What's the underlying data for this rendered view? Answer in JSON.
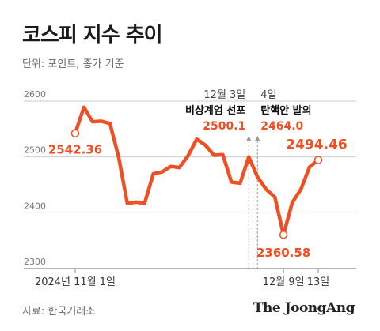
{
  "title": "코스피 지수 추이",
  "unit_label": "단위: 포인트, 종가 기준",
  "source": "자료: 한국거래소",
  "brand": "The JoongAng",
  "colors": {
    "line": "#f04e23",
    "grid": "#cccccc",
    "text": "#333333",
    "muted": "#777777"
  },
  "chart_data": {
    "type": "line",
    "title": "코스피 지수 추이",
    "ylim": [
      2300,
      2600
    ],
    "yticks": [
      2300,
      2400,
      2500,
      2600
    ],
    "ytick_labels": [
      "2300",
      "2400",
      "2500",
      "2600"
    ],
    "grid": true,
    "x": [
      0,
      1,
      2,
      3,
      4,
      5,
      6,
      7,
      8,
      9,
      10,
      11,
      12,
      13,
      14,
      15,
      16,
      17,
      18,
      19,
      20,
      21,
      22,
      23,
      24,
      25,
      26,
      27,
      28
    ],
    "values": [
      2542.36,
      2589,
      2563,
      2564,
      2560,
      2500,
      2417,
      2419,
      2417,
      2470,
      2473,
      2483,
      2481,
      2502,
      2532,
      2521,
      2503,
      2504,
      2455,
      2453,
      2500.1,
      2464.0,
      2442,
      2428,
      2360.58,
      2418,
      2442,
      2482,
      2494.46
    ],
    "xtick_labels": [
      {
        "index": 0,
        "label": "2024년 11월 1일"
      },
      {
        "index": 24,
        "label": "12월 9일"
      },
      {
        "index": 28,
        "label": "13일"
      }
    ],
    "value_labels": [
      {
        "index": 0,
        "label": "2542.36"
      },
      {
        "index": 24,
        "label": "2360.58"
      },
      {
        "index": 28,
        "label": "2494.46"
      }
    ],
    "annotations": [
      {
        "index": 20,
        "date": "12월 3일",
        "event": "비상계엄 선포",
        "value": "2500.1"
      },
      {
        "index": 21,
        "date": "4일",
        "event": "탄핵안 발의",
        "value": "2464.0"
      }
    ]
  }
}
